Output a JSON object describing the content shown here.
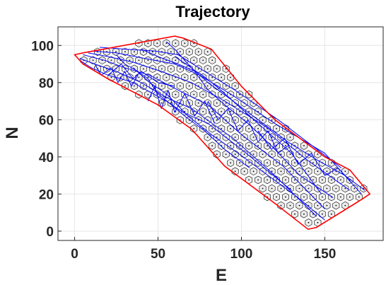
{
  "chart_data": {
    "type": "scatter",
    "title": "Trajectory",
    "xlabel": "E",
    "ylabel": "N",
    "xlim": [
      -10,
      185
    ],
    "ylim": [
      -5,
      110
    ],
    "xticks": [
      0,
      50,
      100,
      150
    ],
    "yticks": [
      0,
      20,
      40,
      60,
      80,
      100
    ],
    "grid": true,
    "colors": {
      "boundary": "#ff0000",
      "trajectory": "#0000ff",
      "hex_cells": "#000000",
      "axes": "#262626",
      "grid": "#e6e6e6"
    },
    "series": [
      {
        "type": "line",
        "role": "boundary",
        "x": [
          0,
          5,
          60,
          65,
          82,
          100,
          120,
          150,
          165,
          177,
          172,
          145,
          140,
          120,
          90,
          70,
          50,
          20,
          5,
          0
        ],
        "y": [
          95,
          96,
          105,
          104,
          98,
          78,
          60,
          40,
          33,
          20,
          17,
          2,
          1,
          15,
          35,
          55,
          68,
          82,
          90,
          95
        ]
      },
      {
        "type": "line",
        "role": "trajectory",
        "paths": [
          {
            "x": [
              3,
              12,
              25,
              40,
              55,
              70,
              95,
              120,
              145
            ],
            "y": [
              93,
              90,
              86,
              80,
              72,
              66,
              50,
              30,
              8
            ]
          },
          {
            "x": [
              5,
              18,
              30,
              45,
              62,
              80,
              100,
              125,
              150
            ],
            "y": [
              95,
              92,
              88,
              84,
              76,
              68,
              52,
              35,
              12
            ]
          },
          {
            "x": [
              8,
              20,
              35,
              52,
              70,
              90,
              115,
              140,
              165
            ],
            "y": [
              96,
              94,
              91,
              86,
              80,
              70,
              56,
              38,
              22
            ]
          },
          {
            "x": [
              10,
              25,
              42,
              60,
              75,
              95,
              120,
              150,
              172
            ],
            "y": [
              97,
              96,
              93,
              90,
              84,
              73,
              58,
              42,
              20
            ]
          },
          {
            "x": [
              15,
              30,
              48,
              62,
              78,
              96,
              122,
              160
            ],
            "y": [
              99,
              98,
              97,
              95,
              86,
              76,
              60,
              34
            ]
          },
          {
            "x": [
              3,
              10,
              20,
              28,
              35,
              40,
              50,
              60
            ],
            "y": [
              92,
              88,
              84,
              90,
              82,
              86,
              80,
              78
            ]
          },
          {
            "x": [
              20,
              28,
              35,
              45,
              55,
              65,
              80,
              100,
              130
            ],
            "y": [
              84,
              82,
              80,
              75,
              70,
              64,
              58,
              44,
              22
            ]
          },
          {
            "x": [
              40,
              50,
              62,
              75,
              85,
              95,
              110,
              130,
              148
            ],
            "y": [
              98,
              94,
              90,
              85,
              78,
              70,
              58,
              42,
              20
            ]
          },
          {
            "x": [
              25,
              30,
              38,
              44,
              50,
              58,
              66,
              78,
              90,
              105
            ],
            "y": [
              95,
              90,
              86,
              82,
              74,
              68,
              62,
              54,
              44,
              34
            ]
          },
          {
            "x": [
              55,
              60,
              66,
              72,
              80,
              90,
              104,
              118,
              135,
              155
            ],
            "y": [
              102,
              98,
              92,
              86,
              76,
              68,
              58,
              46,
              30,
              18
            ]
          },
          {
            "x": [
              12,
              16,
              22,
              26,
              30,
              34,
              38
            ],
            "y": [
              90,
              84,
              88,
              80,
              86,
              78,
              84
            ]
          },
          {
            "x": [
              44,
              48,
              52,
              56,
              60,
              66,
              72,
              78,
              84
            ],
            "y": [
              70,
              78,
              66,
              76,
              64,
              74,
              62,
              70,
              58
            ]
          },
          {
            "x": [
              80,
              86,
              92,
              98,
              104,
              110,
              116,
              122,
              128
            ],
            "y": [
              70,
              60,
              66,
              54,
              60,
              48,
              54,
              42,
              46
            ]
          },
          {
            "x": [
              110,
              118,
              126,
              134,
              142,
              150,
              158,
              166
            ],
            "y": [
              54,
              44,
              50,
              36,
              42,
              30,
              34,
              26
            ]
          },
          {
            "x": [
              60,
              70,
              80,
              95,
              110,
              128,
              146,
              162,
              174
            ],
            "y": [
              94,
              88,
              80,
              70,
              60,
              48,
              38,
              30,
              22
            ]
          },
          {
            "x": [
              35,
              45,
              55,
              68,
              82,
              98,
              116,
              134,
              150
            ],
            "y": [
              88,
              80,
              74,
              62,
              52,
              42,
              30,
              18,
              6
            ]
          }
        ]
      }
    ],
    "hex_grid": {
      "centers_x_step": 5.5,
      "centers_y_step": 4.6,
      "x_range": [
        0,
        178
      ],
      "y_range": [
        0,
        105
      ]
    }
  }
}
